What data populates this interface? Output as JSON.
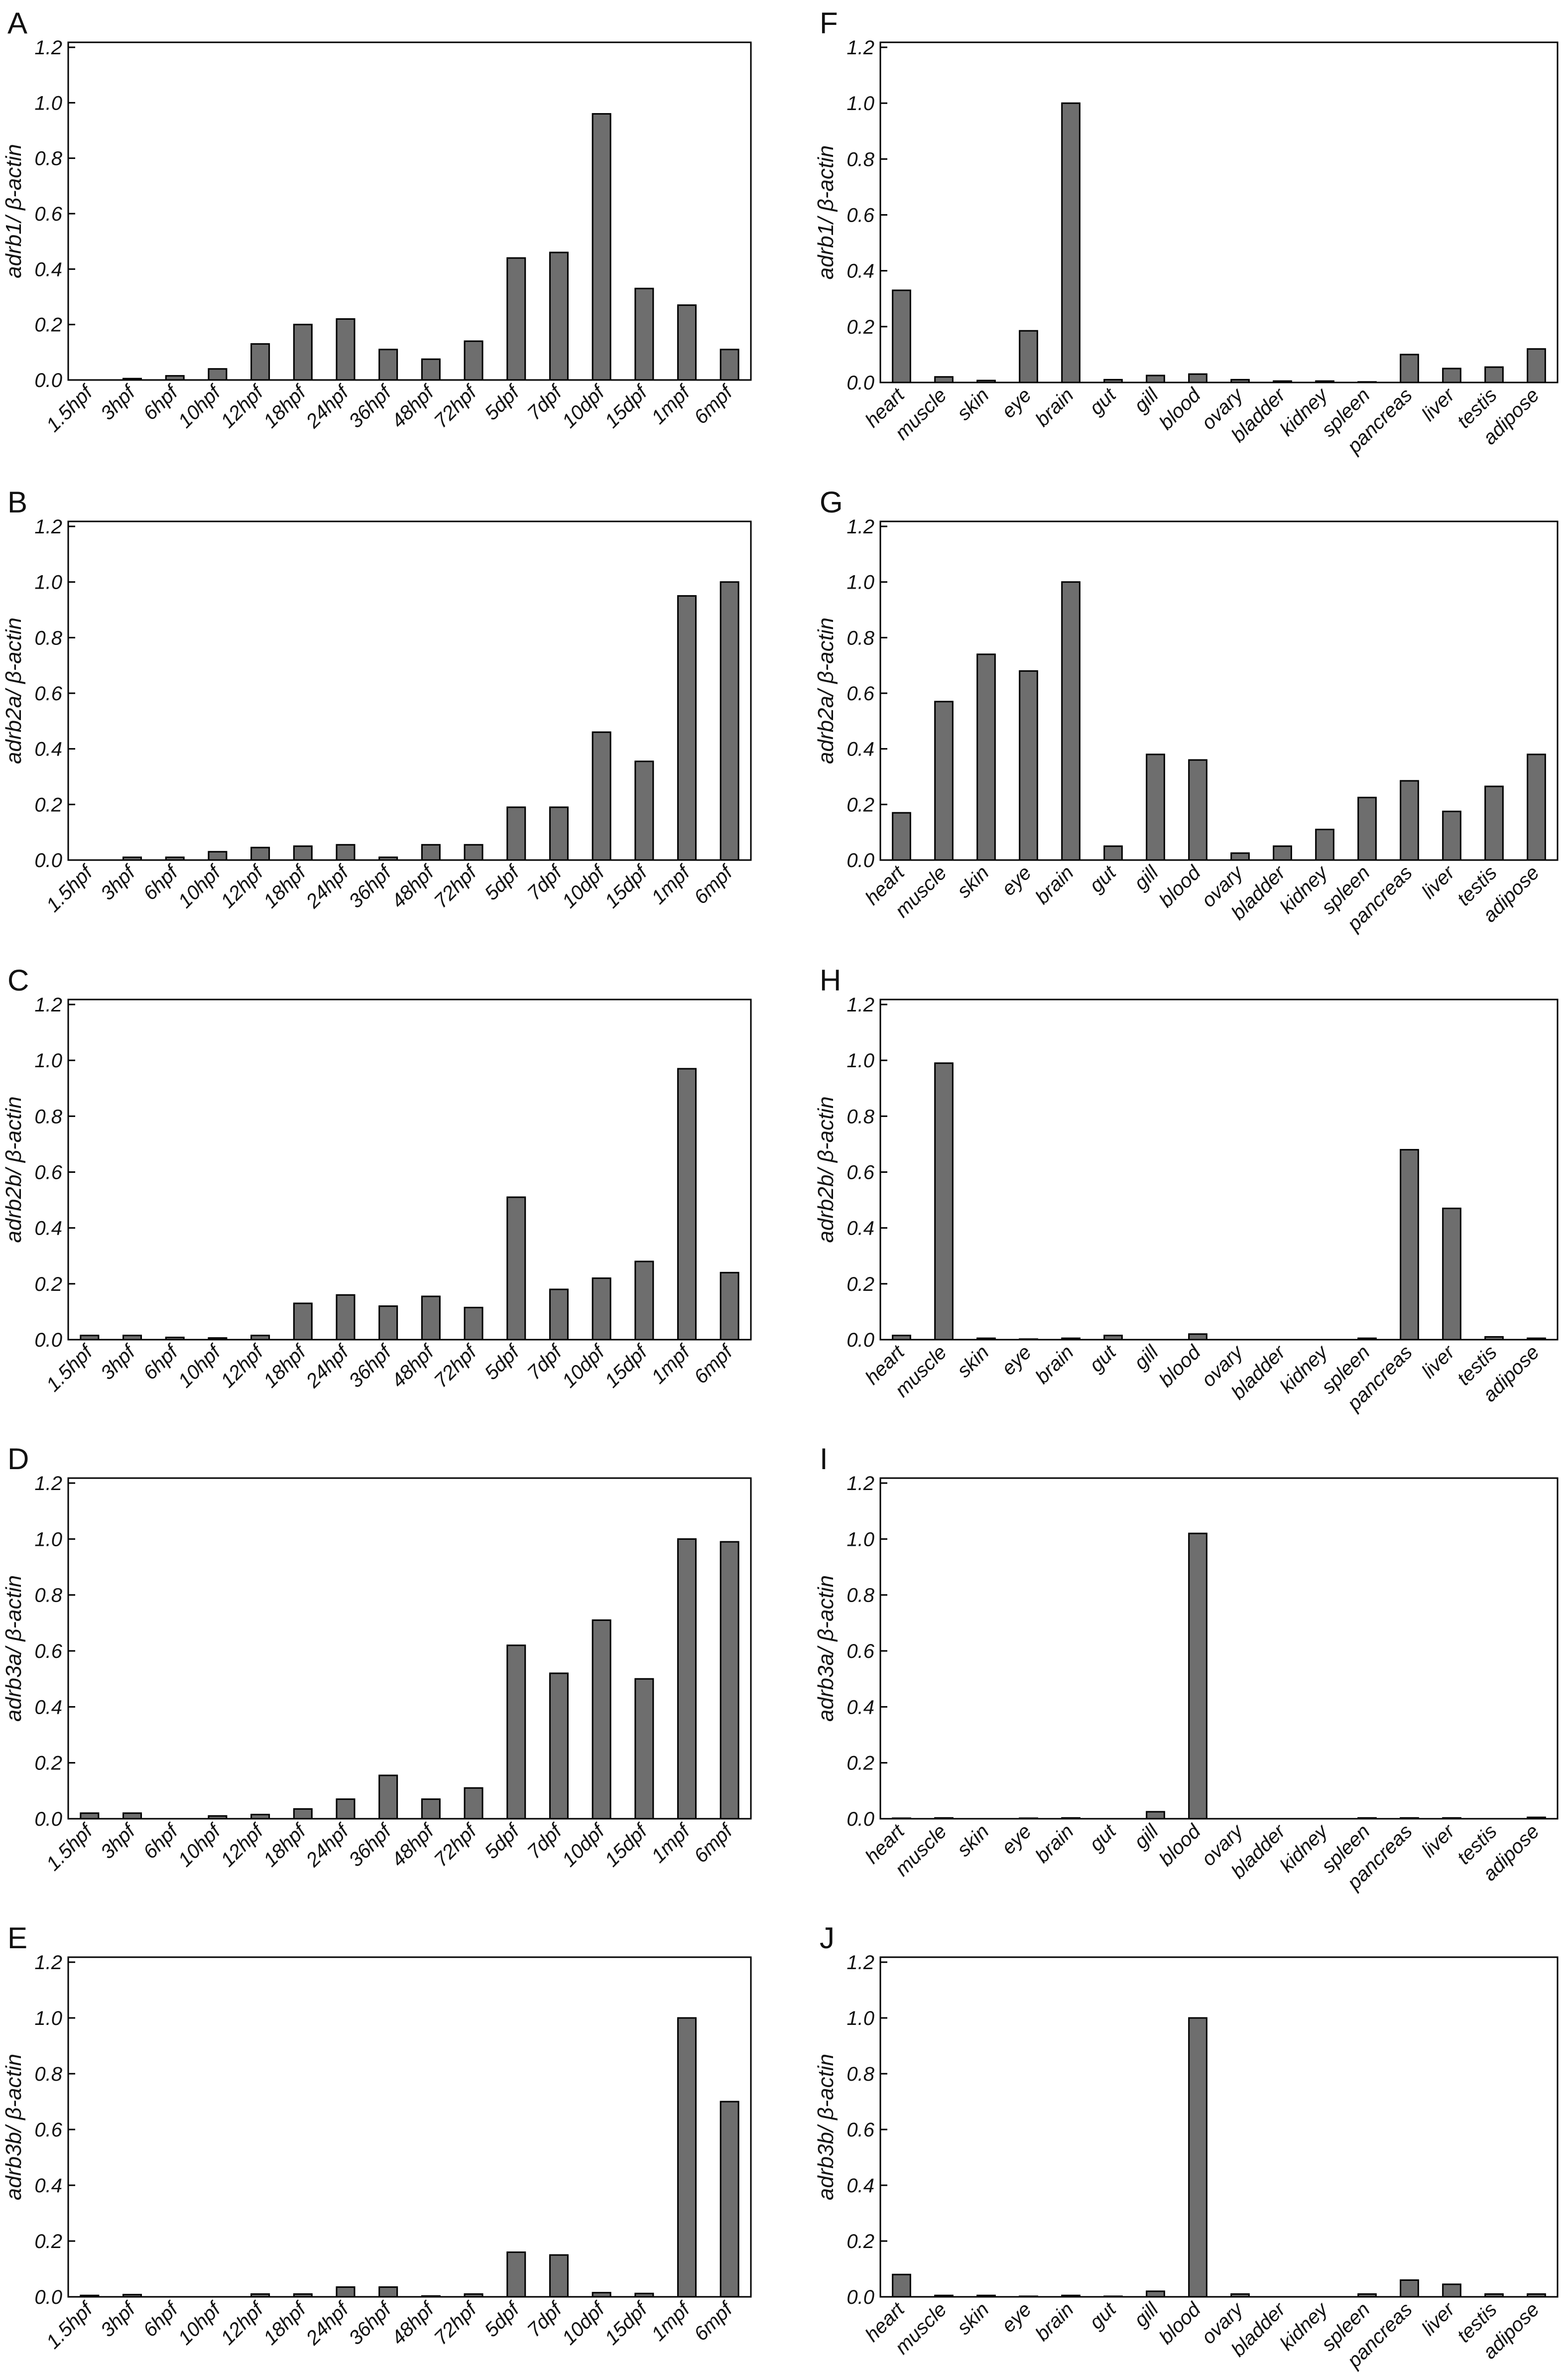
{
  "colors": {
    "bar_fill": "#6e6e6e",
    "axis": "#000000",
    "background": "#ffffff"
  },
  "chart_data": [
    {
      "panel": "A",
      "type": "bar",
      "ylabel": "adrb1/ β-actin",
      "ylim": [
        0,
        1.2
      ],
      "yticks": [
        "0.0",
        "0.2",
        "0.4",
        "0.6",
        "0.8",
        "1.0",
        "1.2"
      ],
      "categories": [
        "1.5hpf",
        "3hpf",
        "6hpf",
        "10hpf",
        "12hpf",
        "18hpf",
        "24hpf",
        "36hpf",
        "48hpf",
        "72hpf",
        "5dpf",
        "7dpf",
        "10dpf",
        "15dpf",
        "1mpf",
        "6mpf"
      ],
      "values": [
        0,
        0.005,
        0.015,
        0.04,
        0.13,
        0.2,
        0.22,
        0.11,
        0.075,
        0.14,
        0.44,
        0.46,
        0.96,
        0.33,
        0.27,
        0.11
      ]
    },
    {
      "panel": "F",
      "type": "bar",
      "ylabel": "adrb1/ β-actin",
      "ylim": [
        0,
        1.2
      ],
      "yticks": [
        "0.0",
        "0.2",
        "0.4",
        "0.6",
        "0.8",
        "1.0",
        "1.2"
      ],
      "categories": [
        "heart",
        "muscle",
        "skin",
        "eye",
        "brain",
        "gut",
        "gill",
        "blood",
        "ovary",
        "bladder",
        "kidney",
        "spleen",
        "pancreas",
        "liver",
        "testis",
        "adipose"
      ],
      "values": [
        0.33,
        0.02,
        0.007,
        0.185,
        1.0,
        0.01,
        0.025,
        0.03,
        0.01,
        0.005,
        0.005,
        0.002,
        0.1,
        0.05,
        0.055,
        0.12
      ]
    },
    {
      "panel": "B",
      "type": "bar",
      "ylabel": "adrb2a/ β-actin",
      "ylim": [
        0,
        1.2
      ],
      "yticks": [
        "0.0",
        "0.2",
        "0.4",
        "0.6",
        "0.8",
        "1.0",
        "1.2"
      ],
      "categories": [
        "1.5hpf",
        "3hpf",
        "6hpf",
        "10hpf",
        "12hpf",
        "18hpf",
        "24hpf",
        "36hpf",
        "48hpf",
        "72hpf",
        "5dpf",
        "7dpf",
        "10dpf",
        "15dpf",
        "1mpf",
        "6mpf"
      ],
      "values": [
        0,
        0.01,
        0.01,
        0.03,
        0.045,
        0.05,
        0.055,
        0.01,
        0.055,
        0.055,
        0.19,
        0.19,
        0.46,
        0.355,
        0.95,
        1.0
      ]
    },
    {
      "panel": "G",
      "type": "bar",
      "ylabel": "adrb2a/ β-actin",
      "ylim": [
        0,
        1.2
      ],
      "yticks": [
        "0.0",
        "0.2",
        "0.4",
        "0.6",
        "0.8",
        "1.0",
        "1.2"
      ],
      "categories": [
        "heart",
        "muscle",
        "skin",
        "eye",
        "brain",
        "gut",
        "gill",
        "blood",
        "ovary",
        "bladder",
        "kidney",
        "spleen",
        "pancreas",
        "liver",
        "testis",
        "adipose"
      ],
      "values": [
        0.17,
        0.57,
        0.74,
        0.68,
        1.0,
        0.05,
        0.38,
        0.36,
        0.025,
        0.05,
        0.11,
        0.225,
        0.285,
        0.175,
        0.265,
        0.38
      ]
    },
    {
      "panel": "C",
      "type": "bar",
      "ylabel": "adrb2b/ β-actin",
      "ylim": [
        0,
        1.2
      ],
      "yticks": [
        "0.0",
        "0.2",
        "0.4",
        "0.6",
        "0.8",
        "1.0",
        "1.2"
      ],
      "categories": [
        "1.5hpf",
        "3hpf",
        "6hpf",
        "10hpf",
        "12hpf",
        "18hpf",
        "24hpf",
        "36hpf",
        "48hpf",
        "72hpf",
        "5dpf",
        "7dpf",
        "10dpf",
        "15dpf",
        "1mpf",
        "6mpf"
      ],
      "values": [
        0.015,
        0.015,
        0.008,
        0.006,
        0.015,
        0.13,
        0.16,
        0.12,
        0.155,
        0.115,
        0.51,
        0.18,
        0.22,
        0.28,
        0.97,
        0.24
      ]
    },
    {
      "panel": "H",
      "type": "bar",
      "ylabel": "adrb2b/ β-actin",
      "ylim": [
        0,
        1.2
      ],
      "yticks": [
        "0.0",
        "0.2",
        "0.4",
        "0.6",
        "0.8",
        "1.0",
        "1.2"
      ],
      "categories": [
        "heart",
        "muscle",
        "skin",
        "eye",
        "brain",
        "gut",
        "gill",
        "blood",
        "ovary",
        "bladder",
        "kidney",
        "spleen",
        "pancreas",
        "liver",
        "testis",
        "adipose"
      ],
      "values": [
        0.015,
        0.99,
        0.005,
        0.002,
        0.005,
        0.015,
        0,
        0.02,
        0,
        0,
        0,
        0.005,
        0.68,
        0.47,
        0.01,
        0.005
      ]
    },
    {
      "panel": "D",
      "type": "bar",
      "ylabel": "adrb3a/ β-actin",
      "ylim": [
        0,
        1.2
      ],
      "yticks": [
        "0.0",
        "0.2",
        "0.4",
        "0.6",
        "0.8",
        "1.0",
        "1.2"
      ],
      "categories": [
        "1.5hpf",
        "3hpf",
        "6hpf",
        "10hpf",
        "12hpf",
        "18hpf",
        "24hpf",
        "36hpf",
        "48hpf",
        "72hpf",
        "5dpf",
        "7dpf",
        "10dpf",
        "15dpf",
        "1mpf",
        "6mpf"
      ],
      "values": [
        0.02,
        0.02,
        0,
        0.01,
        0.015,
        0.035,
        0.07,
        0.155,
        0.07,
        0.11,
        0.62,
        0.52,
        0.71,
        0.5,
        1.0,
        0.99
      ]
    },
    {
      "panel": "I",
      "type": "bar",
      "ylabel": "adrb3a/ β-actin",
      "ylim": [
        0,
        1.2
      ],
      "yticks": [
        "0.0",
        "0.2",
        "0.4",
        "0.6",
        "0.8",
        "1.0",
        "1.2"
      ],
      "categories": [
        "heart",
        "muscle",
        "skin",
        "eye",
        "brain",
        "gut",
        "gill",
        "blood",
        "ovary",
        "bladder",
        "kidney",
        "spleen",
        "pancreas",
        "liver",
        "testis",
        "adipose"
      ],
      "values": [
        0.002,
        0.003,
        0,
        0.002,
        0.003,
        0,
        0.025,
        1.02,
        0,
        0,
        0,
        0.003,
        0.003,
        0.003,
        0,
        0.005
      ]
    },
    {
      "panel": "E",
      "type": "bar",
      "ylabel": "adrb3b/ β-actin",
      "ylim": [
        0,
        1.2
      ],
      "yticks": [
        "0.0",
        "0.2",
        "0.4",
        "0.6",
        "0.8",
        "1.0",
        "1.2"
      ],
      "categories": [
        "1.5hpf",
        "3hpf",
        "6hpf",
        "10hpf",
        "12hpf",
        "18hpf",
        "24hpf",
        "36hpf",
        "48hpf",
        "72hpf",
        "5dpf",
        "7dpf",
        "10dpf",
        "15dpf",
        "1mpf",
        "6mpf"
      ],
      "values": [
        0.005,
        0.008,
        0,
        0,
        0.01,
        0.01,
        0.035,
        0.035,
        0.003,
        0.01,
        0.16,
        0.15,
        0.015,
        0.012,
        1.0,
        0.7
      ]
    },
    {
      "panel": "J",
      "type": "bar",
      "ylabel": "adrb3b/ β-actin",
      "ylim": [
        0,
        1.2
      ],
      "yticks": [
        "0.0",
        "0.2",
        "0.4",
        "0.6",
        "0.8",
        "1.0",
        "1.2"
      ],
      "categories": [
        "heart",
        "muscle",
        "skin",
        "eye",
        "brain",
        "gut",
        "gill",
        "blood",
        "ovary",
        "bladder",
        "kidney",
        "spleen",
        "pancreas",
        "liver",
        "testis",
        "adipose"
      ],
      "values": [
        0.08,
        0.005,
        0.005,
        0.002,
        0.005,
        0.002,
        0.02,
        1.0,
        0.01,
        0,
        0,
        0.01,
        0.06,
        0.045,
        0.01,
        0.01
      ]
    }
  ]
}
